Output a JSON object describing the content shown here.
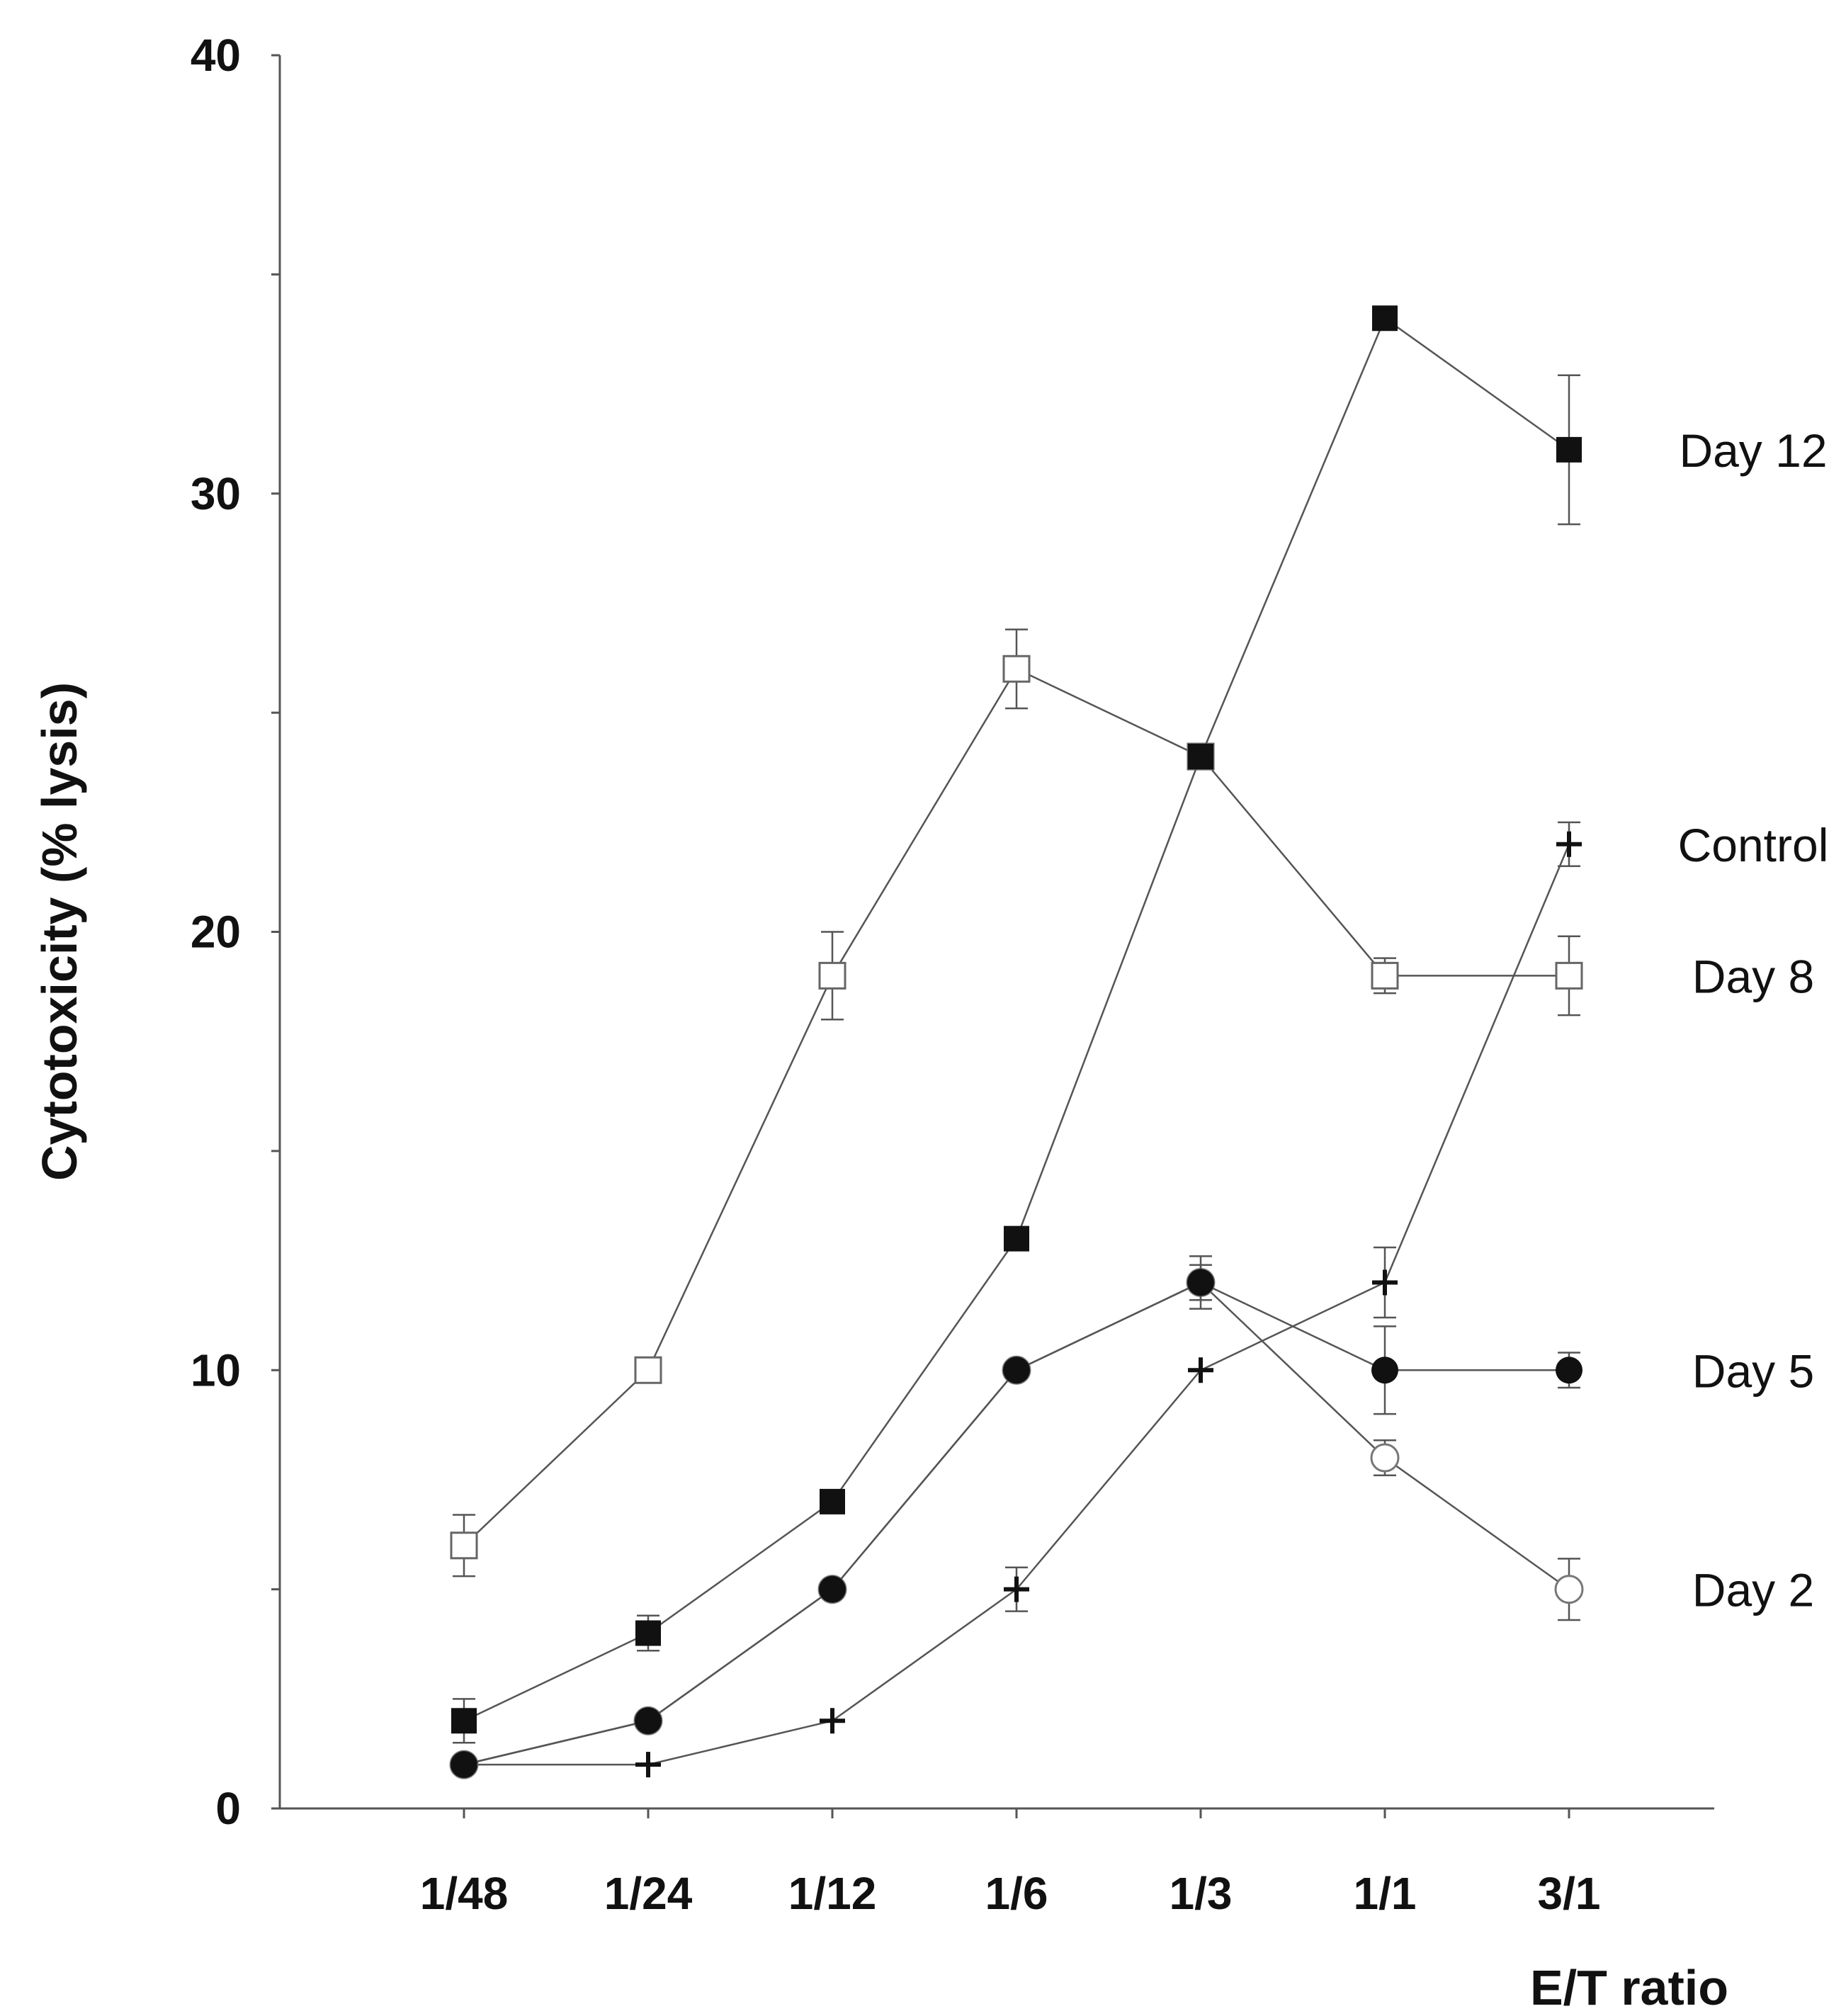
{
  "chart_data": {
    "type": "line",
    "xlabel": "E/T ratio",
    "ylabel": "Cytotoxicity (% lysis)",
    "categories": [
      "1/48",
      "1/24",
      "1/12",
      "1/6",
      "1/3",
      "1/1",
      "3/1"
    ],
    "ylim": [
      0,
      40
    ],
    "yticks": [
      0,
      10,
      20,
      30,
      40
    ],
    "grid": false,
    "legend": "series labels at right end of each line",
    "series": [
      {
        "name": "Day 12",
        "marker": "filled-square",
        "values": [
          2,
          4,
          7,
          13,
          24,
          34,
          31
        ],
        "errors": [
          0.5,
          0.4,
          0,
          0,
          0,
          0,
          1.7
        ]
      },
      {
        "name": "Control",
        "marker": "plus",
        "values": [
          1,
          1,
          2,
          5,
          10,
          12,
          22
        ],
        "errors": [
          0,
          0,
          0,
          0.5,
          0,
          0.8,
          0.5
        ]
      },
      {
        "name": "Day 8",
        "marker": "open-square",
        "values": [
          6,
          10,
          19,
          26,
          24,
          19,
          19
        ],
        "errors": [
          0.7,
          0,
          1.0,
          0.9,
          0,
          0.4,
          0.9
        ]
      },
      {
        "name": "Day 5",
        "marker": "filled-circle",
        "values": [
          1,
          2,
          5,
          10,
          12,
          10,
          10
        ],
        "errors": [
          0,
          0,
          0,
          0,
          0.4,
          1.0,
          0.4
        ]
      },
      {
        "name": "Day 2",
        "marker": "open-circle",
        "values": [
          1,
          2,
          5,
          10,
          12,
          8,
          5
        ],
        "errors": [
          0,
          0,
          0,
          0,
          0.6,
          0.4,
          0.7
        ]
      }
    ]
  }
}
